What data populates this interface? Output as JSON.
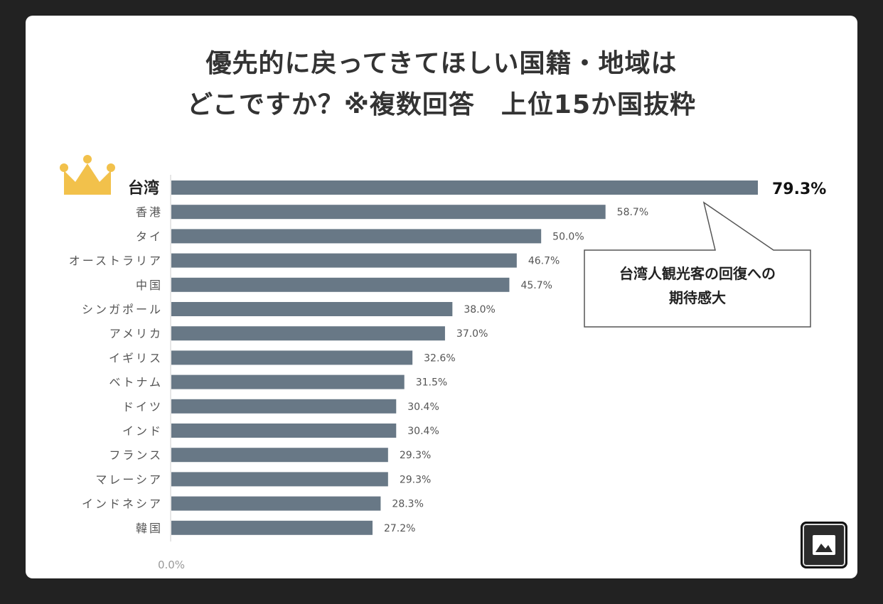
{
  "title_line1": "優先的に戻ってきてほしい国籍・地域は",
  "title_line2": "どこですか？※複数回答　上位15か国抜粋",
  "callout": {
    "line1": "台湾人観光客の回復への",
    "line2": "期待感大"
  },
  "image_button_icon": "image-icon",
  "colors": {
    "bar": "#687886",
    "crown": "#F2C14B",
    "background": "#222222"
  },
  "chart_data": {
    "type": "bar",
    "orientation": "horizontal",
    "categories": [
      "台湾",
      "香港",
      "タイ",
      "オーストラリア",
      "中国",
      "シンガポール",
      "アメリカ",
      "イギリス",
      "ベトナム",
      "ドイツ",
      "インド",
      "フランス",
      "マレーシア",
      "インドネシア",
      "韓国"
    ],
    "values": [
      79.3,
      58.7,
      50.0,
      46.7,
      45.7,
      38.0,
      37.0,
      32.6,
      31.5,
      30.4,
      30.4,
      29.3,
      29.3,
      28.3,
      27.2
    ],
    "value_labels": [
      "79.3%",
      "58.7%",
      "50.0%",
      "46.7%",
      "45.7%",
      "38.0%",
      "37.0%",
      "32.6%",
      "31.5%",
      "30.4%",
      "30.4%",
      "29.3%",
      "29.3%",
      "28.3%",
      "27.2%"
    ],
    "axis_tick_label": "0.0%",
    "xlim": [
      0,
      79.3
    ],
    "highlight_index": 0,
    "grid": false
  }
}
